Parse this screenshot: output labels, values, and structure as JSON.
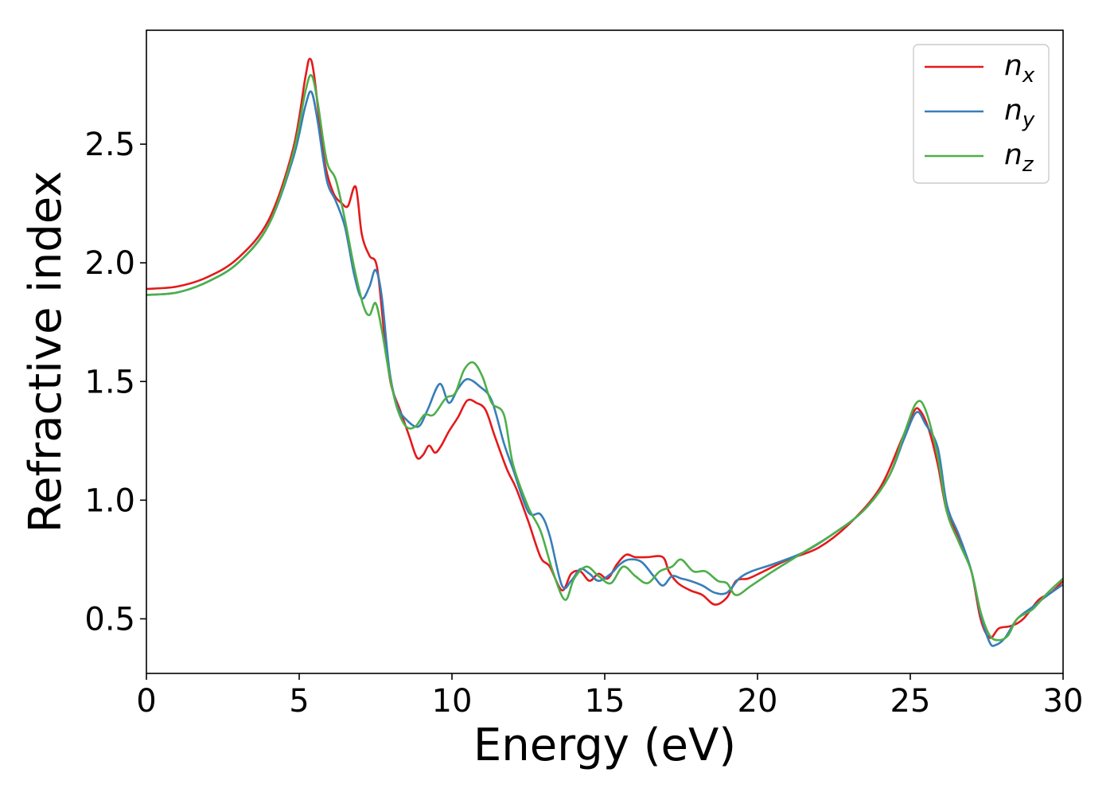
{
  "chart_data": {
    "type": "line",
    "title": "",
    "xlabel": "Energy (eV)",
    "ylabel": "Refractive index",
    "xlim": [
      0,
      30
    ],
    "ylim": [
      0.27,
      2.98
    ],
    "xticks": [
      0,
      5,
      10,
      15,
      20,
      25,
      30
    ],
    "xtick_labels": [
      "0",
      "5",
      "10",
      "15",
      "20",
      "25",
      "30"
    ],
    "yticks": [
      0.5,
      1.0,
      1.5,
      2.0,
      2.5
    ],
    "ytick_labels": [
      "0.5",
      "1.0",
      "1.5",
      "2.0",
      "2.5"
    ],
    "grid": false,
    "legend_position": "top-right",
    "series": [
      {
        "name": "n_x",
        "legend_base": "n",
        "legend_sub": "x",
        "color": "#e41a1c",
        "points": [
          [
            0,
            1.89
          ],
          [
            1,
            1.9
          ],
          [
            2,
            1.94
          ],
          [
            3,
            2.02
          ],
          [
            4,
            2.18
          ],
          [
            4.8,
            2.48
          ],
          [
            5.2,
            2.78
          ],
          [
            5.35,
            2.86
          ],
          [
            5.5,
            2.78
          ],
          [
            5.8,
            2.45
          ],
          [
            6.1,
            2.3
          ],
          [
            6.4,
            2.25
          ],
          [
            6.6,
            2.24
          ],
          [
            6.85,
            2.32
          ],
          [
            7.05,
            2.12
          ],
          [
            7.3,
            2.03
          ],
          [
            7.55,
            1.98
          ],
          [
            7.8,
            1.68
          ],
          [
            8.0,
            1.49
          ],
          [
            8.3,
            1.38
          ],
          [
            8.6,
            1.27
          ],
          [
            8.85,
            1.18
          ],
          [
            9.05,
            1.19
          ],
          [
            9.25,
            1.23
          ],
          [
            9.45,
            1.2
          ],
          [
            9.65,
            1.23
          ],
          [
            9.9,
            1.29
          ],
          [
            10.2,
            1.35
          ],
          [
            10.5,
            1.42
          ],
          [
            10.8,
            1.41
          ],
          [
            11.1,
            1.38
          ],
          [
            11.4,
            1.27
          ],
          [
            11.8,
            1.13
          ],
          [
            12.1,
            1.05
          ],
          [
            12.5,
            0.91
          ],
          [
            12.9,
            0.76
          ],
          [
            13.2,
            0.72
          ],
          [
            13.6,
            0.62
          ],
          [
            13.9,
            0.69
          ],
          [
            14.2,
            0.7
          ],
          [
            14.5,
            0.66
          ],
          [
            14.8,
            0.69
          ],
          [
            15.1,
            0.67
          ],
          [
            15.4,
            0.73
          ],
          [
            15.7,
            0.77
          ],
          [
            16.0,
            0.76
          ],
          [
            16.4,
            0.76
          ],
          [
            16.9,
            0.76
          ],
          [
            17.1,
            0.7
          ],
          [
            17.4,
            0.65
          ],
          [
            17.8,
            0.62
          ],
          [
            18.2,
            0.6
          ],
          [
            18.6,
            0.56
          ],
          [
            19.0,
            0.59
          ],
          [
            19.3,
            0.66
          ],
          [
            19.7,
            0.67
          ],
          [
            20.2,
            0.7
          ],
          [
            21.0,
            0.75
          ],
          [
            22.0,
            0.8
          ],
          [
            23.0,
            0.9
          ],
          [
            24.0,
            1.05
          ],
          [
            24.7,
            1.25
          ],
          [
            25.1,
            1.37
          ],
          [
            25.3,
            1.38
          ],
          [
            25.6,
            1.3
          ],
          [
            25.9,
            1.15
          ],
          [
            26.2,
            0.95
          ],
          [
            26.6,
            0.84
          ],
          [
            27.0,
            0.7
          ],
          [
            27.3,
            0.5
          ],
          [
            27.6,
            0.42
          ],
          [
            27.9,
            0.46
          ],
          [
            28.3,
            0.47
          ],
          [
            28.7,
            0.5
          ],
          [
            29.2,
            0.58
          ],
          [
            29.6,
            0.61
          ],
          [
            30.0,
            0.66
          ]
        ]
      },
      {
        "name": "n_y",
        "legend_base": "n",
        "legend_sub": "y",
        "color": "#377eb8",
        "points": [
          [
            0,
            1.865
          ],
          [
            1,
            1.875
          ],
          [
            2,
            1.92
          ],
          [
            3,
            2.0
          ],
          [
            4,
            2.16
          ],
          [
            4.8,
            2.44
          ],
          [
            5.2,
            2.66
          ],
          [
            5.4,
            2.72
          ],
          [
            5.6,
            2.6
          ],
          [
            5.9,
            2.35
          ],
          [
            6.2,
            2.26
          ],
          [
            6.5,
            2.15
          ],
          [
            6.8,
            1.95
          ],
          [
            7.05,
            1.85
          ],
          [
            7.3,
            1.9
          ],
          [
            7.5,
            1.97
          ],
          [
            7.7,
            1.86
          ],
          [
            7.95,
            1.55
          ],
          [
            8.2,
            1.4
          ],
          [
            8.5,
            1.34
          ],
          [
            8.9,
            1.31
          ],
          [
            9.2,
            1.38
          ],
          [
            9.6,
            1.49
          ],
          [
            9.9,
            1.41
          ],
          [
            10.2,
            1.47
          ],
          [
            10.5,
            1.51
          ],
          [
            10.9,
            1.48
          ],
          [
            11.3,
            1.42
          ],
          [
            11.7,
            1.24
          ],
          [
            12.0,
            1.13
          ],
          [
            12.5,
            0.95
          ],
          [
            12.9,
            0.94
          ],
          [
            13.2,
            0.85
          ],
          [
            13.6,
            0.64
          ],
          [
            13.9,
            0.66
          ],
          [
            14.2,
            0.71
          ],
          [
            14.5,
            0.69
          ],
          [
            14.8,
            0.66
          ],
          [
            15.2,
            0.69
          ],
          [
            15.5,
            0.73
          ],
          [
            15.8,
            0.75
          ],
          [
            16.2,
            0.74
          ],
          [
            16.6,
            0.68
          ],
          [
            16.9,
            0.64
          ],
          [
            17.2,
            0.68
          ],
          [
            17.5,
            0.67
          ],
          [
            17.8,
            0.66
          ],
          [
            18.2,
            0.64
          ],
          [
            18.6,
            0.61
          ],
          [
            19.0,
            0.61
          ],
          [
            19.4,
            0.67
          ],
          [
            19.8,
            0.7
          ],
          [
            20.5,
            0.73
          ],
          [
            21.5,
            0.78
          ],
          [
            22.5,
            0.86
          ],
          [
            23.5,
            0.96
          ],
          [
            24.3,
            1.1
          ],
          [
            24.8,
            1.26
          ],
          [
            25.2,
            1.37
          ],
          [
            25.5,
            1.32
          ],
          [
            25.9,
            1.22
          ],
          [
            26.2,
            0.98
          ],
          [
            26.6,
            0.85
          ],
          [
            27.0,
            0.7
          ],
          [
            27.3,
            0.52
          ],
          [
            27.6,
            0.4
          ],
          [
            27.8,
            0.39
          ],
          [
            28.1,
            0.42
          ],
          [
            28.5,
            0.5
          ],
          [
            29.0,
            0.55
          ],
          [
            29.5,
            0.6
          ],
          [
            30.0,
            0.645
          ]
        ]
      },
      {
        "name": "n_z",
        "legend_base": "n",
        "legend_sub": "z",
        "color": "#4daf4a",
        "points": [
          [
            0,
            1.865
          ],
          [
            1,
            1.875
          ],
          [
            2,
            1.92
          ],
          [
            3,
            2.0
          ],
          [
            4,
            2.16
          ],
          [
            4.8,
            2.46
          ],
          [
            5.2,
            2.72
          ],
          [
            5.4,
            2.79
          ],
          [
            5.6,
            2.68
          ],
          [
            5.9,
            2.43
          ],
          [
            6.2,
            2.35
          ],
          [
            6.5,
            2.18
          ],
          [
            6.8,
            1.98
          ],
          [
            7.1,
            1.82
          ],
          [
            7.3,
            1.78
          ],
          [
            7.5,
            1.83
          ],
          [
            7.7,
            1.72
          ],
          [
            7.95,
            1.53
          ],
          [
            8.2,
            1.39
          ],
          [
            8.5,
            1.31
          ],
          [
            8.8,
            1.31
          ],
          [
            9.1,
            1.36
          ],
          [
            9.4,
            1.36
          ],
          [
            9.8,
            1.43
          ],
          [
            10.1,
            1.45
          ],
          [
            10.4,
            1.55
          ],
          [
            10.7,
            1.58
          ],
          [
            11.0,
            1.52
          ],
          [
            11.3,
            1.41
          ],
          [
            11.7,
            1.36
          ],
          [
            12.0,
            1.15
          ],
          [
            12.5,
            0.97
          ],
          [
            12.9,
            0.87
          ],
          [
            13.3,
            0.7
          ],
          [
            13.7,
            0.58
          ],
          [
            14.0,
            0.67
          ],
          [
            14.4,
            0.72
          ],
          [
            14.8,
            0.68
          ],
          [
            15.2,
            0.65
          ],
          [
            15.6,
            0.72
          ],
          [
            16.0,
            0.68
          ],
          [
            16.4,
            0.65
          ],
          [
            16.8,
            0.7
          ],
          [
            17.2,
            0.72
          ],
          [
            17.5,
            0.75
          ],
          [
            17.9,
            0.7
          ],
          [
            18.3,
            0.7
          ],
          [
            18.7,
            0.66
          ],
          [
            19.0,
            0.65
          ],
          [
            19.3,
            0.6
          ],
          [
            19.8,
            0.64
          ],
          [
            20.5,
            0.7
          ],
          [
            21.5,
            0.78
          ],
          [
            22.5,
            0.86
          ],
          [
            23.5,
            0.96
          ],
          [
            24.3,
            1.1
          ],
          [
            24.8,
            1.28
          ],
          [
            25.2,
            1.41
          ],
          [
            25.5,
            1.38
          ],
          [
            25.9,
            1.18
          ],
          [
            26.2,
            0.95
          ],
          [
            26.6,
            0.82
          ],
          [
            27.0,
            0.7
          ],
          [
            27.3,
            0.53
          ],
          [
            27.6,
            0.43
          ],
          [
            27.9,
            0.41
          ],
          [
            28.2,
            0.43
          ],
          [
            28.5,
            0.5
          ],
          [
            29.0,
            0.54
          ],
          [
            29.5,
            0.61
          ],
          [
            30.0,
            0.67
          ]
        ]
      }
    ]
  }
}
